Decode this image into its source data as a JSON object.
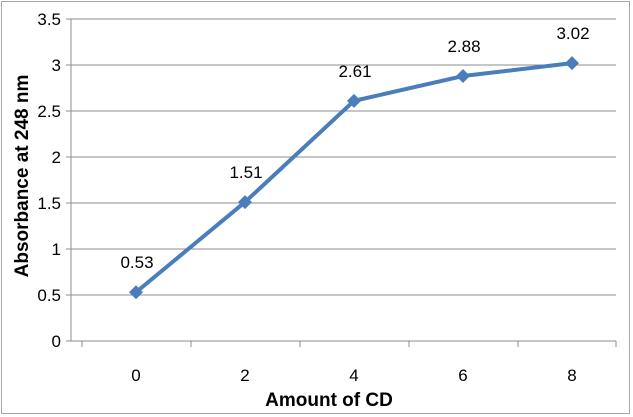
{
  "chart_data": {
    "type": "line",
    "title": "",
    "xlabel": "Amount of CD",
    "ylabel": "Absorbance at 248 nm",
    "x": [
      0,
      2,
      4,
      6,
      8
    ],
    "x_tick_labels": [
      "0",
      "2",
      "4",
      "6",
      "8"
    ],
    "y_tick_labels": [
      "0",
      "0.5",
      "1",
      "1.5",
      "2",
      "2.5",
      "3",
      "3.5"
    ],
    "ylim": [
      0,
      3.5
    ],
    "y_ticks": [
      0,
      0.5,
      1,
      1.5,
      2,
      2.5,
      3,
      3.5
    ],
    "grid": "horizontal",
    "legend": "none",
    "series": [
      {
        "values": [
          0.53,
          1.51,
          2.61,
          2.88,
          3.02
        ],
        "data_labels": [
          "0.53",
          "1.51",
          "2.61",
          "2.88",
          "3.02"
        ],
        "color": "#4a7ebb",
        "marker": "diamond"
      }
    ]
  }
}
